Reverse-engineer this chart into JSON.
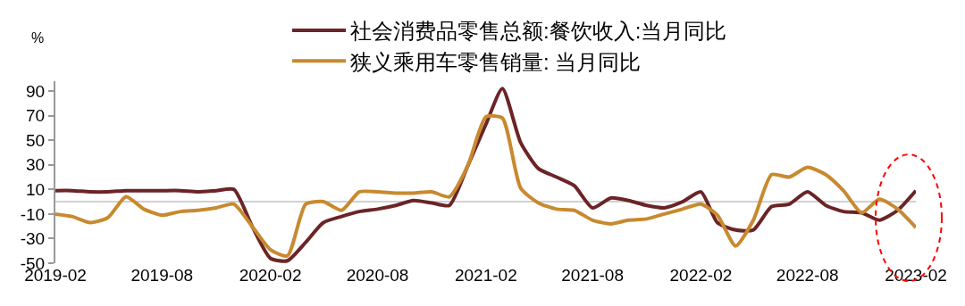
{
  "chart_data": {
    "type": "line",
    "ylabel": "%",
    "x": [
      "2019-02",
      "2019-03",
      "2019-04",
      "2019-05",
      "2019-06",
      "2019-07",
      "2019-08",
      "2019-09",
      "2019-10",
      "2019-11",
      "2019-12",
      "2020-01",
      "2020-02",
      "2020-03",
      "2020-04",
      "2020-05",
      "2020-06",
      "2020-07",
      "2020-08",
      "2020-09",
      "2020-10",
      "2020-11",
      "2020-12",
      "2021-01",
      "2021-02",
      "2021-03",
      "2021-04",
      "2021-05",
      "2021-06",
      "2021-07",
      "2021-08",
      "2021-09",
      "2021-10",
      "2021-11",
      "2021-12",
      "2022-01",
      "2022-02",
      "2022-03",
      "2022-04",
      "2022-05",
      "2022-06",
      "2022-07",
      "2022-08",
      "2022-09",
      "2022-10",
      "2022-11",
      "2022-12",
      "2023-01",
      "2023-02"
    ],
    "series": [
      {
        "name": "社会消费品零售总额:餐饮收入:当月同比",
        "color": "#6b2427",
        "values": [
          9,
          9,
          8,
          8,
          9,
          9,
          9,
          9,
          8,
          9,
          10,
          -20,
          -46,
          -48,
          -33,
          -17,
          -12,
          -8,
          -6,
          -3,
          1,
          -1,
          -3,
          29,
          63,
          92,
          48,
          27,
          20,
          13,
          -5,
          3,
          1,
          -3,
          -5,
          0,
          8,
          -17,
          -23,
          -23,
          -4,
          -2,
          8,
          -3,
          -8,
          -9,
          -15,
          -7,
          9
        ]
      },
      {
        "name": "狭义乘用车零售销量: 当月同比",
        "color": "#c8892f",
        "values": [
          -10,
          -12,
          -17,
          -13,
          4,
          -6,
          -11,
          -8,
          -7,
          -5,
          -2,
          -20,
          -39,
          -44,
          -2,
          0,
          -7,
          8,
          8,
          7,
          7,
          8,
          4,
          29,
          69,
          68,
          11,
          -1,
          -6,
          -7,
          -15,
          -18,
          -15,
          -14,
          -10,
          -6,
          -2,
          -11,
          -36,
          -15,
          22,
          20,
          28,
          22,
          9,
          -9,
          2,
          -6,
          -21
        ]
      }
    ],
    "xlim": [
      "2019-02",
      "2023-02"
    ],
    "xticks": [
      "2019-02",
      "2019-08",
      "2020-02",
      "2020-08",
      "2021-02",
      "2021-08",
      "2022-02",
      "2022-08",
      "2023-02"
    ],
    "ylim": [
      -50,
      98
    ],
    "yticks": [
      -50,
      -30,
      -10,
      10,
      30,
      50,
      70,
      90
    ],
    "grid": false,
    "legend": "top",
    "marker": "none",
    "line_style": "solid"
  }
}
